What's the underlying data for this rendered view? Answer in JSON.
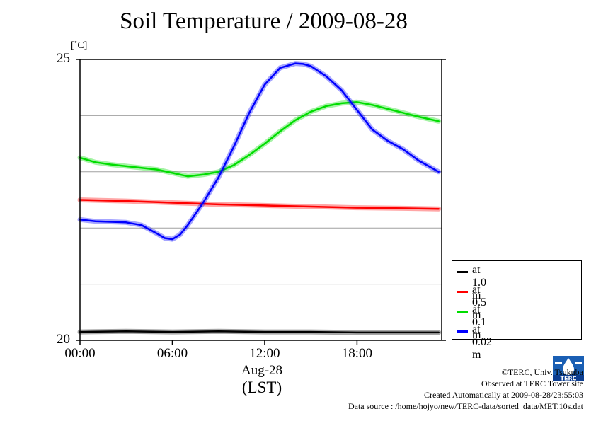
{
  "page": {
    "title": "Soil Temperature / 2009-08-28",
    "unit_label": "[˚C]",
    "footer": [
      "©TERC, Univ. Tsukuba",
      "Observed at TERC Tower site",
      "Created Automatically at 2009-08-28/23:55:03",
      "Data source : /home/hojyo/new/TERC-data/sorted_data/MET.10s.dat"
    ],
    "logo_text": "TERC"
  },
  "chart_data": {
    "type": "line",
    "title": "Soil Temperature / 2009-08-28",
    "ylabel": "[˚C]",
    "xlabel": "(LST)",
    "x_date_label": "Aug-28",
    "xlim": [
      0,
      23.5
    ],
    "ylim": [
      20,
      25
    ],
    "y_ticks": [
      20,
      25
    ],
    "y_tick_labels": [
      "20",
      "25"
    ],
    "y_gridlines": [
      21,
      22,
      23,
      24
    ],
    "x_ticks": [
      0,
      6,
      12,
      18
    ],
    "x_tick_labels": [
      "00:00",
      "06:00",
      "12:00",
      "18:00"
    ],
    "grid": "horizontal",
    "legend_position": "bottom-right, outside plot",
    "series": [
      {
        "name": "at 1.0 m",
        "color": "#000000",
        "x": [
          0,
          3,
          6,
          9,
          12,
          15,
          18,
          21,
          23.3
        ],
        "y": [
          20.15,
          20.16,
          20.15,
          20.16,
          20.15,
          20.15,
          20.14,
          20.14,
          20.14
        ]
      },
      {
        "name": "at 0.5 m",
        "color": "#ff0000",
        "x": [
          0,
          3,
          6,
          9,
          12,
          15,
          18,
          21,
          23.3
        ],
        "y": [
          22.5,
          22.48,
          22.45,
          22.42,
          22.4,
          22.38,
          22.36,
          22.35,
          22.34
        ]
      },
      {
        "name": "at 0.1 m",
        "color": "#00dd00",
        "x": [
          0,
          1,
          2,
          3,
          4,
          5,
          6,
          7,
          8,
          9,
          10,
          11,
          12,
          13,
          14,
          15,
          16,
          17,
          18,
          19,
          20,
          21,
          22,
          23.3
        ],
        "y": [
          23.25,
          23.17,
          23.13,
          23.1,
          23.07,
          23.04,
          22.98,
          22.92,
          22.95,
          23.0,
          23.12,
          23.3,
          23.5,
          23.72,
          23.92,
          24.07,
          24.17,
          24.22,
          24.24,
          24.19,
          24.12,
          24.05,
          23.98,
          23.9
        ]
      },
      {
        "name": "at 0.02 m",
        "color": "#0000ff",
        "x": [
          0,
          1,
          2,
          3,
          4,
          5,
          5.5,
          6,
          6.5,
          7,
          8,
          9,
          10,
          11,
          12,
          13,
          14,
          14.5,
          15,
          16,
          17,
          18,
          19,
          20,
          21,
          22,
          23.3
        ],
        "y": [
          22.15,
          22.12,
          22.11,
          22.1,
          22.05,
          21.9,
          21.82,
          21.8,
          21.88,
          22.05,
          22.45,
          22.9,
          23.45,
          24.05,
          24.55,
          24.85,
          24.93,
          24.92,
          24.88,
          24.7,
          24.45,
          24.1,
          23.75,
          23.55,
          23.4,
          23.2,
          23.0
        ]
      }
    ]
  }
}
